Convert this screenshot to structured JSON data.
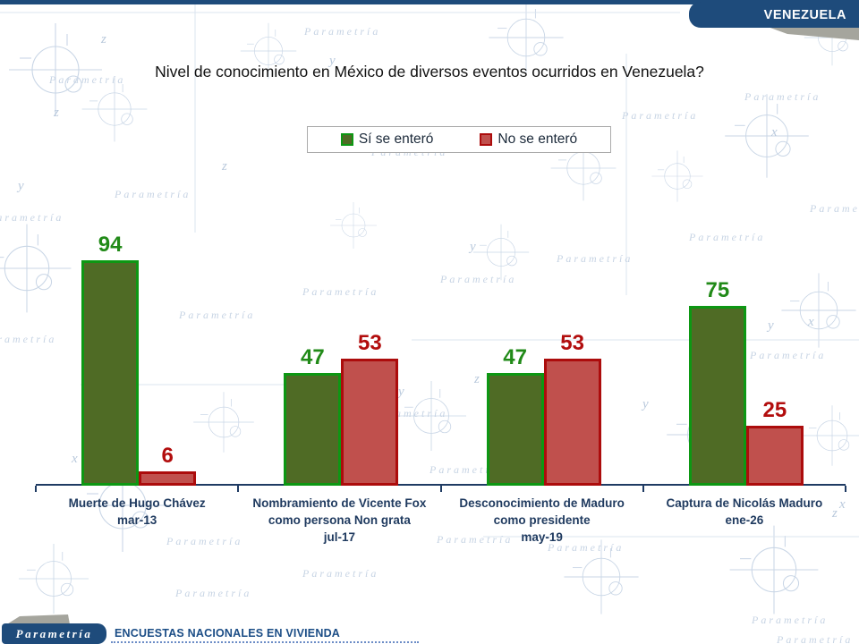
{
  "header": {
    "region_label": "VENEZUELA"
  },
  "title": "Nivel de conocimiento en México de diversos eventos ocurridos en Venezuela?",
  "legend": {
    "items": [
      {
        "label": "Sí se enteró",
        "fill": "#4f6b25",
        "border": "#0d9713"
      },
      {
        "label": "No se enteró",
        "fill": "#c0504d",
        "border": "#ac0c0c"
      }
    ]
  },
  "chart_data": {
    "type": "bar",
    "title": "Nivel de conocimiento en México de diversos eventos ocurridos en Venezuela?",
    "categories": [
      [
        "Muerte de Hugo Chávez",
        "mar-13"
      ],
      [
        "Nombramiento de Vicente Fox",
        "como persona Non grata",
        "jul-17"
      ],
      [
        "Desconocimiento de Maduro",
        "como presidente",
        "may-19"
      ],
      [
        "Captura de Nicolás Maduro",
        "ene-26"
      ]
    ],
    "series": [
      {
        "name": "Sí se enteró",
        "values": [
          94,
          47,
          47,
          75
        ],
        "fill": "#4f6b25",
        "border": "#0d9713",
        "label_color": "#218a18"
      },
      {
        "name": "No se enteró",
        "values": [
          6,
          53,
          53,
          25
        ],
        "fill": "#c0504d",
        "border": "#ac0c0c",
        "label_color": "#b20d0d"
      }
    ],
    "ylim": [
      0,
      100
    ],
    "grid": false,
    "data_labels": true,
    "legend_position": "top"
  },
  "footer": {
    "logo_text": "Parametría",
    "caption": "ENCUESTAS NACIONALES EN VIVIENDA"
  },
  "background": {
    "watermark_text": "Parametría",
    "letters": [
      "x",
      "y",
      "z"
    ]
  },
  "colors": {
    "banner_navy": "#1e4b7b",
    "axis_navy": "#1f3b63",
    "category_text": "#1f3a5f",
    "footer_caption": "#1b4d86",
    "watermark": "#c7d4e4",
    "fold_gray": "#a5a59d"
  }
}
